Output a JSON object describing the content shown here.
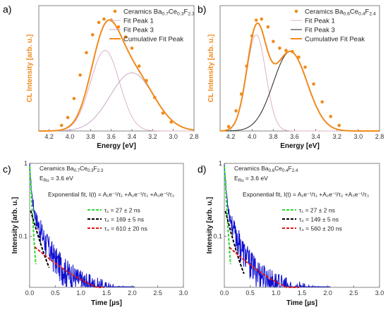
{
  "figure": {
    "panels": [
      "a)",
      "b)",
      "c)",
      "d)"
    ]
  },
  "colors": {
    "orange": "#f08a1c",
    "peak_pink": "#dcb3c3",
    "peak3_a": "#c8a6c8",
    "peak3_b": "#222222",
    "decay_blue": "#1010d0",
    "fit_green": "#2ddc2d",
    "fit_black": "#000000",
    "fit_red": "#e01818"
  },
  "chart_data": [
    {
      "id": "a",
      "type": "line",
      "xlabel": "Energy [eV]",
      "ylabel": "CL Intensity [arb. u.]",
      "xlim": [
        4.3,
        2.8
      ],
      "x_ticks": [
        "4.2",
        "4.0",
        "3.8",
        "3.6",
        "3.4",
        "3.2",
        "3.0",
        "2.8"
      ],
      "legend": {
        "points_label": "Ceramics Ba",
        "points_sub1": "0.7",
        "points_mid": "Ce",
        "points_sub2": "0.3",
        "points_end": "F",
        "points_sub3": "2.3",
        "peak1": "Fit Peak 1",
        "peak3": "Fit Peak 3",
        "cumulative": "Cumulative Fit Peak"
      },
      "points": [
        {
          "x": 4.08,
          "y": 0.05
        },
        {
          "x": 4.02,
          "y": 0.12
        },
        {
          "x": 3.96,
          "y": 0.29
        },
        {
          "x": 3.9,
          "y": 0.5
        },
        {
          "x": 3.84,
          "y": 0.7
        },
        {
          "x": 3.78,
          "y": 0.86
        },
        {
          "x": 3.72,
          "y": 0.97
        },
        {
          "x": 3.67,
          "y": 1.0
        },
        {
          "x": 3.6,
          "y": 0.99
        },
        {
          "x": 3.53,
          "y": 0.93
        },
        {
          "x": 3.46,
          "y": 0.84
        },
        {
          "x": 3.4,
          "y": 0.74
        },
        {
          "x": 3.33,
          "y": 0.58
        },
        {
          "x": 3.26,
          "y": 0.45
        },
        {
          "x": 3.18,
          "y": 0.3
        },
        {
          "x": 3.1,
          "y": 0.16
        },
        {
          "x": 3.02,
          "y": 0.08
        }
      ],
      "peak1": {
        "center": 3.66,
        "amp": 0.72,
        "sigma": 0.14
      },
      "peak3": {
        "center": 3.4,
        "amp": 0.52,
        "sigma": 0.21
      }
    },
    {
      "id": "b",
      "type": "line",
      "xlabel": "Energy [eV]",
      "ylabel": "CL Intensity [arb. u.]",
      "xlim": [
        4.3,
        2.8
      ],
      "x_ticks": [
        "4.2",
        "4.0",
        "3.8",
        "3.6",
        "3.4",
        "3.2",
        "3.0",
        "2.8"
      ],
      "legend": {
        "points_label": "Ceramics Ba",
        "points_sub1": "0.6",
        "points_mid": "Ce",
        "points_sub2": "0.4",
        "points_end": "F",
        "points_sub3": "2.4",
        "peak1": "Fit Peak 1",
        "peak3": "Fit Peak 3",
        "cumulative": "Cumulative Fit Peak"
      },
      "points": [
        {
          "x": 4.22,
          "y": 0.04
        },
        {
          "x": 4.15,
          "y": 0.18
        },
        {
          "x": 4.1,
          "y": 0.33
        },
        {
          "x": 4.05,
          "y": 0.58
        },
        {
          "x": 4.0,
          "y": 0.85
        },
        {
          "x": 3.96,
          "y": 0.99
        },
        {
          "x": 3.91,
          "y": 1.0
        },
        {
          "x": 3.85,
          "y": 0.93
        },
        {
          "x": 3.8,
          "y": 0.8
        },
        {
          "x": 3.74,
          "y": 0.74
        },
        {
          "x": 3.68,
          "y": 0.72
        },
        {
          "x": 3.62,
          "y": 0.71
        },
        {
          "x": 3.56,
          "y": 0.66
        },
        {
          "x": 3.5,
          "y": 0.57
        },
        {
          "x": 3.42,
          "y": 0.42
        },
        {
          "x": 3.34,
          "y": 0.26
        },
        {
          "x": 3.26,
          "y": 0.13
        },
        {
          "x": 3.18,
          "y": 0.05
        }
      ],
      "peak1": {
        "center": 3.96,
        "amp": 0.86,
        "sigma": 0.09
      },
      "peak3": {
        "center": 3.64,
        "amp": 0.71,
        "sigma": 0.16
      }
    },
    {
      "id": "c",
      "type": "line",
      "xlabel": "Time [µs]",
      "ylabel": "Intensity [arb. u.]",
      "xlim": [
        0,
        3.0
      ],
      "ylog": [
        0.02,
        1.0
      ],
      "x_ticks": [
        "0.0",
        "0.5",
        "1.0",
        "1.5",
        "2.0",
        "2.5",
        "3.0"
      ],
      "y_ticks": [
        "1",
        "0.1"
      ],
      "legend": {
        "sample_label": "Ceramics Ba",
        "sample_sub1": "0.7",
        "sample_mid": "Ce",
        "sample_sub2": "0.3",
        "sample_end": "F",
        "sample_sub3": "2.3",
        "excitation": "E",
        "excitation_sub": "Ru",
        "excitation_value": " = 3.6 eV",
        "fit_formula": "Exponential fit, I(t) = A₁e⁻ᵗ/τ₁ +A₂e⁻ᵗ/τ₂ +A₃e⁻ᵗ/τ₃",
        "tau1": "τ₁ = 27 ± 2 ns",
        "tau2": "τ₂ = 169 ± 5 ns",
        "tau3": "τ₃ = 610 ± 20 ns"
      },
      "taus_ns": [
        27,
        169,
        610
      ],
      "amps": [
        0.7,
        0.24,
        0.06
      ]
    },
    {
      "id": "d",
      "type": "line",
      "xlabel": "Time [µs]",
      "ylabel": "Intensity [arb. u.]",
      "xlim": [
        0,
        3.0
      ],
      "ylog": [
        0.02,
        1.0
      ],
      "x_ticks": [
        "0.0",
        "0.5",
        "1.0",
        "1.5",
        "2.0",
        "2.5",
        "3.0"
      ],
      "y_ticks": [
        "1",
        "0.1"
      ],
      "legend": {
        "sample_label": "Ceramics Ba",
        "sample_sub1": "0.6",
        "sample_mid": "Ce",
        "sample_sub2": "0.4",
        "sample_end": "F",
        "sample_sub3": "2.4",
        "excitation": "E",
        "excitation_sub": "Ru",
        "excitation_value": " = 3.6 eV",
        "fit_formula": "Exponential fit, I(t) = A₁e⁻ᵗ/τ₁ +A₂e⁻ᵗ/τ₂ +A₃e⁻ᵗ/τ₃",
        "tau1": "τ₁ = 27 ± 2 ns",
        "tau2": "τ₂ = 149 ± 5 ns",
        "tau3": "τ₃ = 560 ± 20 ns"
      },
      "taus_ns": [
        27,
        149,
        560
      ],
      "amps": [
        0.7,
        0.24,
        0.06
      ]
    }
  ]
}
